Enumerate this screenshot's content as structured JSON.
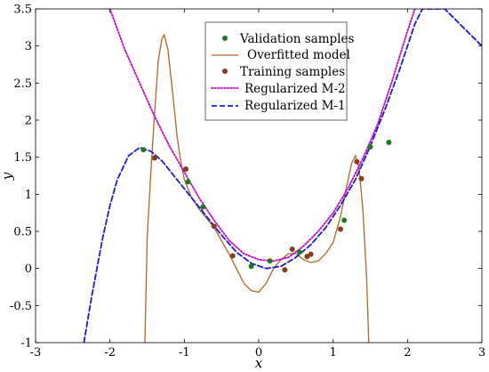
{
  "chart_data": {
    "type": "line",
    "xlabel": "x",
    "ylabel": "y",
    "xlim": [
      -3,
      3
    ],
    "ylim": [
      -1,
      3.5
    ],
    "x_ticks": [
      -3,
      -2,
      -1,
      0,
      1,
      2,
      3
    ],
    "y_ticks": [
      -1,
      -0.5,
      0,
      0.5,
      1,
      1.5,
      2,
      2.5,
      3,
      3.5
    ],
    "grid": false,
    "legend_position": "top-center",
    "series": [
      {
        "name": "Validation samples",
        "kind": "scatter",
        "color": "#1e7a1e",
        "points": [
          [
            -1.55,
            1.6
          ],
          [
            -0.95,
            1.17
          ],
          [
            -0.75,
            0.83
          ],
          [
            -0.1,
            0.03
          ],
          [
            0.15,
            0.1
          ],
          [
            0.55,
            0.22
          ],
          [
            1.15,
            0.65
          ],
          [
            1.5,
            1.64
          ],
          [
            1.75,
            1.7
          ]
        ]
      },
      {
        "name": "Overfitted model",
        "kind": "line",
        "style": "solid",
        "color": "#b5651d",
        "points": [
          [
            -1.53,
            -1.0
          ],
          [
            -1.5,
            0.4
          ],
          [
            -1.45,
            1.3
          ],
          [
            -1.4,
            2.1
          ],
          [
            -1.35,
            2.8
          ],
          [
            -1.3,
            3.1
          ],
          [
            -1.27,
            3.15
          ],
          [
            -1.22,
            2.95
          ],
          [
            -1.15,
            2.3
          ],
          [
            -1.1,
            1.8
          ],
          [
            -1.05,
            1.45
          ],
          [
            -1.0,
            1.2
          ],
          [
            -0.9,
            0.95
          ],
          [
            -0.8,
            0.8
          ],
          [
            -0.6,
            0.55
          ],
          [
            -0.4,
            0.2
          ],
          [
            -0.3,
            0.0
          ],
          [
            -0.2,
            -0.2
          ],
          [
            -0.1,
            -0.3
          ],
          [
            0.0,
            -0.32
          ],
          [
            0.1,
            -0.2
          ],
          [
            0.2,
            0.0
          ],
          [
            0.3,
            0.12
          ],
          [
            0.4,
            0.2
          ],
          [
            0.5,
            0.2
          ],
          [
            0.6,
            0.12
          ],
          [
            0.7,
            0.08
          ],
          [
            0.8,
            0.1
          ],
          [
            0.9,
            0.2
          ],
          [
            1.0,
            0.35
          ],
          [
            1.1,
            0.7
          ],
          [
            1.18,
            1.1
          ],
          [
            1.25,
            1.42
          ],
          [
            1.3,
            1.52
          ],
          [
            1.35,
            1.35
          ],
          [
            1.4,
            0.8
          ],
          [
            1.45,
            -0.1
          ],
          [
            1.48,
            -1.0
          ]
        ]
      },
      {
        "name": "Training samples",
        "kind": "scatter",
        "color": "#8b3a1a",
        "points": [
          [
            -1.4,
            1.49
          ],
          [
            -0.98,
            1.34
          ],
          [
            -0.6,
            0.57
          ],
          [
            -0.35,
            0.17
          ],
          [
            0.35,
            -0.02
          ],
          [
            0.45,
            0.26
          ],
          [
            0.65,
            0.16
          ],
          [
            0.7,
            0.19
          ],
          [
            1.1,
            0.53
          ],
          [
            1.32,
            1.44
          ],
          [
            1.38,
            1.21
          ]
        ]
      },
      {
        "name": "Regularized M-2",
        "kind": "line",
        "style": "dotted",
        "color": "#cc00cc",
        "points": [
          [
            -2.0,
            3.5
          ],
          [
            -1.8,
            2.95
          ],
          [
            -1.6,
            2.5
          ],
          [
            -1.4,
            2.05
          ],
          [
            -1.2,
            1.65
          ],
          [
            -1.0,
            1.3
          ],
          [
            -0.8,
            0.95
          ],
          [
            -0.6,
            0.65
          ],
          [
            -0.4,
            0.38
          ],
          [
            -0.2,
            0.2
          ],
          [
            0.0,
            0.12
          ],
          [
            0.2,
            0.1
          ],
          [
            0.4,
            0.15
          ],
          [
            0.6,
            0.3
          ],
          [
            0.8,
            0.5
          ],
          [
            1.0,
            0.75
          ],
          [
            1.2,
            1.08
          ],
          [
            1.4,
            1.48
          ],
          [
            1.6,
            1.95
          ],
          [
            1.8,
            2.55
          ],
          [
            2.0,
            3.2
          ],
          [
            2.1,
            3.5
          ]
        ]
      },
      {
        "name": "Regularized M-1",
        "kind": "line",
        "style": "dashed",
        "color": "#1a1adb",
        "points": [
          [
            -2.35,
            -1.0
          ],
          [
            -2.25,
            -0.4
          ],
          [
            -2.1,
            0.4
          ],
          [
            -2.0,
            0.85
          ],
          [
            -1.9,
            1.2
          ],
          [
            -1.75,
            1.52
          ],
          [
            -1.6,
            1.63
          ],
          [
            -1.45,
            1.58
          ],
          [
            -1.3,
            1.45
          ],
          [
            -1.1,
            1.2
          ],
          [
            -0.9,
            0.95
          ],
          [
            -0.7,
            0.7
          ],
          [
            -0.5,
            0.45
          ],
          [
            -0.3,
            0.22
          ],
          [
            -0.1,
            0.07
          ],
          [
            0.1,
            0.0
          ],
          [
            0.3,
            0.03
          ],
          [
            0.5,
            0.15
          ],
          [
            0.7,
            0.32
          ],
          [
            0.9,
            0.55
          ],
          [
            1.1,
            0.85
          ],
          [
            1.3,
            1.2
          ],
          [
            1.5,
            1.65
          ],
          [
            1.7,
            2.15
          ],
          [
            1.9,
            2.7
          ],
          [
            2.1,
            3.3
          ],
          [
            2.2,
            3.5
          ],
          [
            2.5,
            3.5
          ],
          [
            2.7,
            3.3
          ],
          [
            2.9,
            3.1
          ],
          [
            3.0,
            3.0
          ]
        ]
      }
    ]
  }
}
